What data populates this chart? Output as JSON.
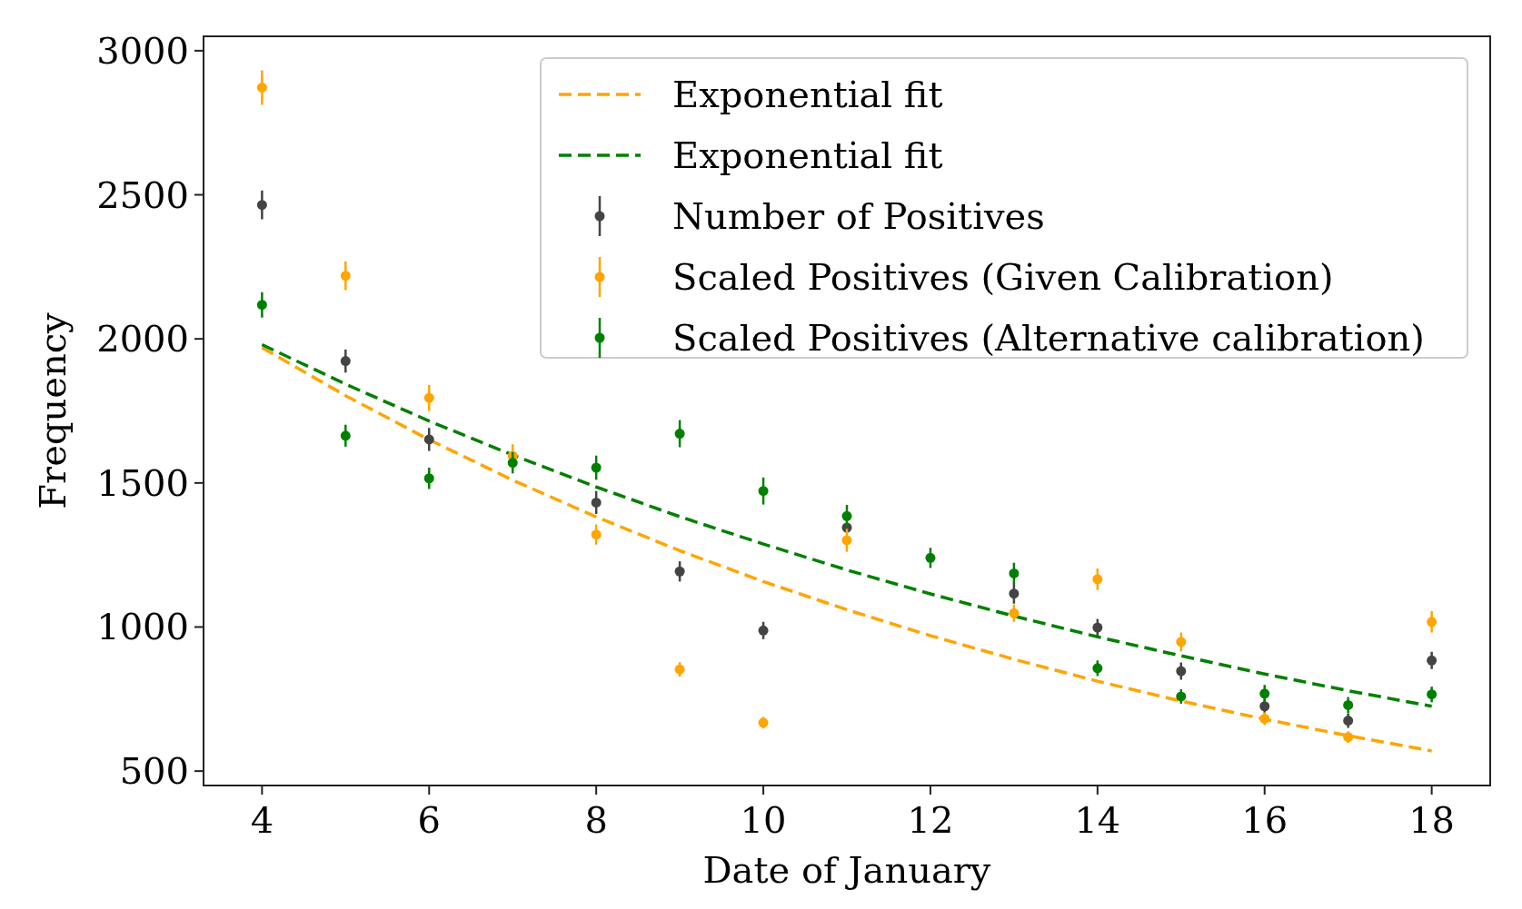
{
  "chart_data": {
    "type": "scatter",
    "xlabel": "Date of January",
    "ylabel": "Frequency",
    "x": [
      4,
      5,
      6,
      7,
      8,
      9,
      10,
      11,
      12,
      13,
      14,
      15,
      16,
      17,
      18
    ],
    "series": [
      {
        "name": "Exponential fit",
        "type": "line",
        "line_style": "dashed",
        "marker": "none",
        "color": "#ffa500",
        "values": [
          1970,
          1803,
          1650,
          1510,
          1382,
          1265,
          1158,
          1060,
          970,
          888,
          812,
          743,
          680,
          623,
          570
        ]
      },
      {
        "name": "Exponential fit",
        "type": "line",
        "line_style": "dashed",
        "marker": "none",
        "color": "#008000",
        "values": [
          1980,
          1843,
          1715,
          1597,
          1486,
          1383,
          1288,
          1198,
          1115,
          1038,
          966,
          900,
          837,
          779,
          725
        ]
      },
      {
        "name": "Number of Positives",
        "marker": "circle",
        "color": "#444444",
        "values": [
          2465,
          1923,
          1651,
          null,
          1432,
          1193,
          988,
          1345,
          null,
          1116,
          998,
          847,
          725,
          675,
          884
        ],
        "errors": [
          50,
          40,
          40,
          null,
          40,
          35,
          30,
          null,
          null,
          35,
          30,
          30,
          25,
          25,
          30
        ]
      },
      {
        "name": "Scaled Positives (Given Calibration)",
        "marker": "circle",
        "color": "#ffa500",
        "values": [
          2872,
          2219,
          1795,
          1594,
          1321,
          853,
          668,
          1301,
          null,
          1048,
          1166,
          948,
          682,
          618,
          1018
        ],
        "errors": [
          60,
          50,
          45,
          40,
          35,
          25,
          20,
          40,
          null,
          30,
          37,
          33,
          22,
          20,
          37
        ]
      },
      {
        "name": "Scaled Positives (Alternative calibration)",
        "marker": "circle",
        "color": "#008000",
        "values": [
          2118,
          1664,
          1516,
          1570,
          1553,
          1671,
          1472,
          1385,
          1240,
          1186,
          857,
          759,
          769,
          729,
          766
        ],
        "errors": [
          44,
          38,
          37,
          37,
          42,
          47,
          47,
          39,
          35,
          37,
          27,
          25,
          30,
          28,
          27
        ]
      }
    ],
    "xlim": [
      3.3,
      18.7
    ],
    "xticks": [
      4,
      6,
      8,
      10,
      12,
      14,
      16,
      18
    ],
    "ylim": [
      450,
      3050
    ],
    "yticks": [
      500,
      1000,
      1500,
      2000,
      2500,
      3000
    ],
    "grid": false,
    "legend": "top right"
  }
}
